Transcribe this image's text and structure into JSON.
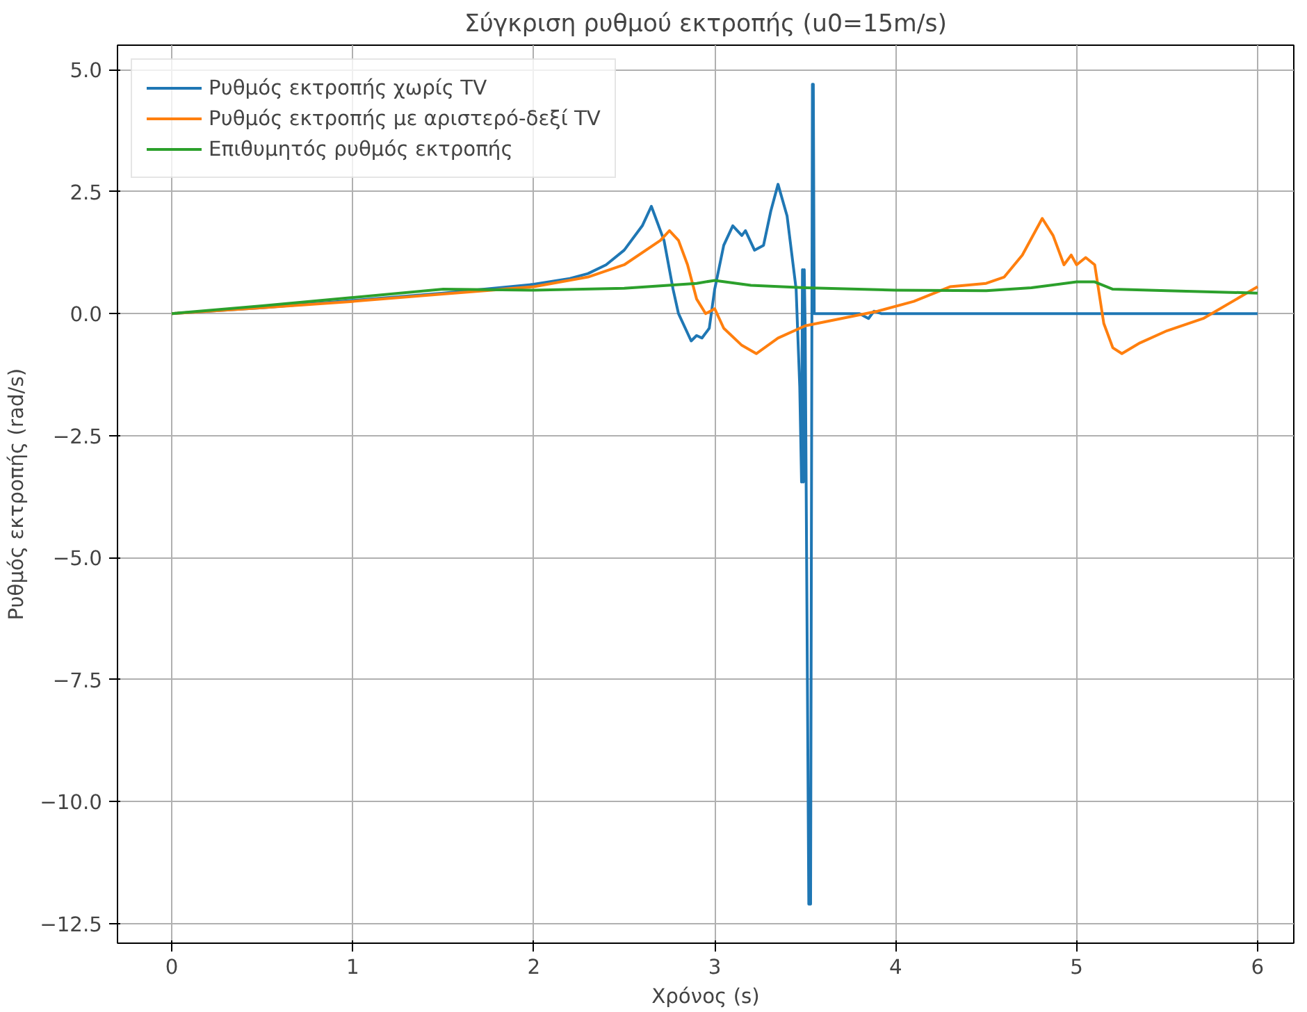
{
  "chart_data": {
    "type": "line",
    "title": "Σύγκριση ρυθμού εκτροπής (u0=15m/s)",
    "xlabel": "Χρόνος (s)",
    "ylabel": "Ρυθμός εκτροπής (rad/s)",
    "xlim": [
      -0.3,
      6.2
    ],
    "ylim": [
      -12.9,
      5.5
    ],
    "xticks": [
      0,
      1,
      2,
      3,
      4,
      5,
      6
    ],
    "yticks": [
      {
        "value": -12.5,
        "label": "−12.5"
      },
      {
        "value": -10,
        "label": "−10.0"
      },
      {
        "value": -7.5,
        "label": "−7.5"
      },
      {
        "value": -5,
        "label": "−5.0"
      },
      {
        "value": -2.5,
        "label": "−2.5"
      },
      {
        "value": 0,
        "label": "0.0"
      },
      {
        "value": 2.5,
        "label": "2.5"
      },
      {
        "value": 5,
        "label": "5.0"
      }
    ],
    "grid": true,
    "legend": "top left",
    "line_style": "solid",
    "marker": "none",
    "series": [
      {
        "name": "Ρυθμός εκτροπής χωρίς TV",
        "color": "#1f77b4",
        "x": [
          0,
          0.5,
          1,
          1.5,
          2,
          2.2,
          2.3,
          2.4,
          2.5,
          2.6,
          2.65,
          2.72,
          2.77,
          2.8,
          2.85,
          2.87,
          2.9,
          2.93,
          2.97,
          3.0,
          3.05,
          3.1,
          3.15,
          3.17,
          3.22,
          3.27,
          3.31,
          3.35,
          3.4,
          3.45,
          3.47,
          3.48,
          3.485,
          3.49,
          3.495,
          3.5,
          3.52,
          3.53,
          3.54,
          3.545,
          3.55,
          3.6,
          3.8,
          3.85,
          3.88,
          3.92,
          4.2,
          5,
          6
        ],
        "values": [
          0,
          0.12,
          0.27,
          0.42,
          0.6,
          0.72,
          0.82,
          1.0,
          1.3,
          1.8,
          2.2,
          1.5,
          0.5,
          0,
          -0.4,
          -0.56,
          -0.45,
          -0.5,
          -0.3,
          0.5,
          1.4,
          1.8,
          1.6,
          1.7,
          1.3,
          1.4,
          2.1,
          2.65,
          2.0,
          0.5,
          -1.5,
          -3.45,
          0.9,
          -3.45,
          0.9,
          -0.3,
          -12.1,
          -12.1,
          4.7,
          4.7,
          0,
          0,
          0,
          -0.1,
          0.05,
          0,
          0,
          0,
          0
        ]
      },
      {
        "name": "Ρυθμός εκτροπής με αριστερό-δεξί TV",
        "color": "#ff7f0e",
        "x": [
          0,
          0.5,
          1,
          1.5,
          2,
          2.3,
          2.5,
          2.7,
          2.75,
          2.8,
          2.85,
          2.9,
          2.95,
          3.0,
          3.05,
          3.15,
          3.23,
          3.35,
          3.5,
          3.7,
          3.9,
          4.1,
          4.3,
          4.5,
          4.6,
          4.7,
          4.81,
          4.87,
          4.93,
          4.97,
          5.0,
          5.05,
          5.1,
          5.15,
          5.2,
          5.25,
          5.35,
          5.5,
          5.7,
          6.0
        ],
        "values": [
          0,
          0.12,
          0.25,
          0.4,
          0.55,
          0.75,
          1.0,
          1.5,
          1.7,
          1.5,
          1.0,
          0.3,
          0.0,
          0.1,
          -0.3,
          -0.65,
          -0.82,
          -0.5,
          -0.25,
          -0.1,
          0.05,
          0.25,
          0.55,
          0.62,
          0.75,
          1.2,
          1.95,
          1.6,
          1.0,
          1.2,
          1.0,
          1.15,
          1.0,
          -0.2,
          -0.7,
          -0.82,
          -0.6,
          -0.35,
          -0.1,
          0.55
        ]
      },
      {
        "name": "Επιθυμητός ρυθμός εκτροπής",
        "color": "#2ca02c",
        "x": [
          0,
          0.5,
          1,
          1.5,
          2,
          2.5,
          2.9,
          3.0,
          3.2,
          3.5,
          4,
          4.5,
          4.75,
          5,
          5.1,
          5.2,
          5.5,
          6
        ],
        "values": [
          0,
          0.16,
          0.33,
          0.5,
          0.48,
          0.52,
          0.62,
          0.68,
          0.58,
          0.53,
          0.48,
          0.47,
          0.53,
          0.65,
          0.65,
          0.5,
          0.47,
          0.42
        ]
      }
    ]
  }
}
